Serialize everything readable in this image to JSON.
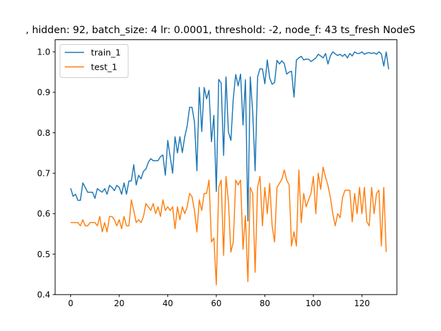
{
  "chart_data": {
    "type": "line",
    "title": ", hidden: 92, batch_size: 4 lr: 0.0001, threshold: -2, node_f: 43 ts_fresh NodeS",
    "xlabel": "",
    "ylabel": "",
    "xlim": [
      -6.4,
      134.4
    ],
    "ylim": [
      0.4,
      1.03
    ],
    "xticks": [
      0,
      20,
      40,
      60,
      80,
      100,
      120
    ],
    "yticks": [
      0.4,
      0.5,
      0.6,
      0.7,
      0.8,
      0.9,
      1.0
    ],
    "ytick_labels": [
      "0.4",
      "0.5",
      "0.6",
      "0.7",
      "0.8",
      "0.9",
      "1.0"
    ],
    "grid": false,
    "legend": "top-left",
    "series": [
      {
        "name": "train_1",
        "color": "#1f77b4",
        "values": [
          0.663,
          0.643,
          0.648,
          0.633,
          0.633,
          0.676,
          0.665,
          0.653,
          0.653,
          0.653,
          0.638,
          0.662,
          0.657,
          0.653,
          0.662,
          0.648,
          0.67,
          0.665,
          0.657,
          0.67,
          0.665,
          0.648,
          0.676,
          0.648,
          0.681,
          0.681,
          0.721,
          0.671,
          0.695,
          0.686,
          0.705,
          0.71,
          0.727,
          0.736,
          0.731,
          0.731,
          0.731,
          0.741,
          0.745,
          0.695,
          0.781,
          0.741,
          0.7,
          0.79,
          0.75,
          0.79,
          0.751,
          0.79,
          0.817,
          0.863,
          0.863,
          0.827,
          0.706,
          0.912,
          0.803,
          0.912,
          0.884,
          0.905,
          0.778,
          0.843,
          0.655,
          0.932,
          0.923,
          0.744,
          0.938,
          0.802,
          0.781,
          0.885,
          0.944,
          0.916,
          0.945,
          0.819,
          0.931,
          0.582,
          0.938,
          0.85,
          0.706,
          0.938,
          0.958,
          0.958,
          0.921,
          0.98,
          0.935,
          0.92,
          0.924,
          0.979,
          0.97,
          0.978,
          0.971,
          0.945,
          0.95,
          0.952,
          0.888,
          0.98,
          0.985,
          0.989,
          0.98,
          0.982,
          0.982,
          0.976,
          0.98,
          0.985,
          0.994,
          0.99,
          0.985,
          0.996,
          0.97,
          0.99,
          1.0,
          0.995,
          0.991,
          0.994,
          0.989,
          0.994,
          0.985,
          0.996,
          0.99,
          1.0,
          0.996,
          0.996,
          1.0,
          0.994,
          0.997,
          0.998,
          0.996,
          0.998,
          0.994,
          1.0,
          0.995,
          0.965,
          1.0,
          0.957
        ]
      },
      {
        "name": "test_1",
        "color": "#ff7f0e",
        "values": [
          0.578,
          0.578,
          0.578,
          0.578,
          0.57,
          0.585,
          0.57,
          0.57,
          0.578,
          0.578,
          0.578,
          0.57,
          0.593,
          0.555,
          0.578,
          0.555,
          0.593,
          0.593,
          0.585,
          0.57,
          0.585,
          0.563,
          0.593,
          0.57,
          0.57,
          0.634,
          0.608,
          0.578,
          0.585,
          0.578,
          0.593,
          0.625,
          0.617,
          0.608,
          0.625,
          0.6,
          0.617,
          0.593,
          0.634,
          0.608,
          0.617,
          0.608,
          0.617,
          0.563,
          0.617,
          0.585,
          0.617,
          0.6,
          0.617,
          0.65,
          0.642,
          0.608,
          0.555,
          0.634,
          0.608,
          0.65,
          0.65,
          0.683,
          0.53,
          0.54,
          0.424,
          0.665,
          0.683,
          0.497,
          0.692,
          0.63,
          0.505,
          0.53,
          0.683,
          0.671,
          0.683,
          0.512,
          0.595,
          0.432,
          0.665,
          0.65,
          0.455,
          0.665,
          0.692,
          0.57,
          0.665,
          0.6,
          0.675,
          0.57,
          0.53,
          0.665,
          0.675,
          0.685,
          0.708,
          0.683,
          0.671,
          0.52,
          0.555,
          0.52,
          0.708,
          0.578,
          0.65,
          0.617,
          0.634,
          0.65,
          0.692,
          0.6,
          0.7,
          0.66,
          0.715,
          0.69,
          0.67,
          0.64,
          0.6,
          0.57,
          0.6,
          0.59,
          0.64,
          0.658,
          0.658,
          0.658,
          0.58,
          0.65,
          0.6,
          0.665,
          0.6,
          0.665,
          0.58,
          0.57,
          0.665,
          0.6,
          0.65,
          0.658,
          0.52,
          0.665,
          0.505
        ]
      }
    ]
  }
}
